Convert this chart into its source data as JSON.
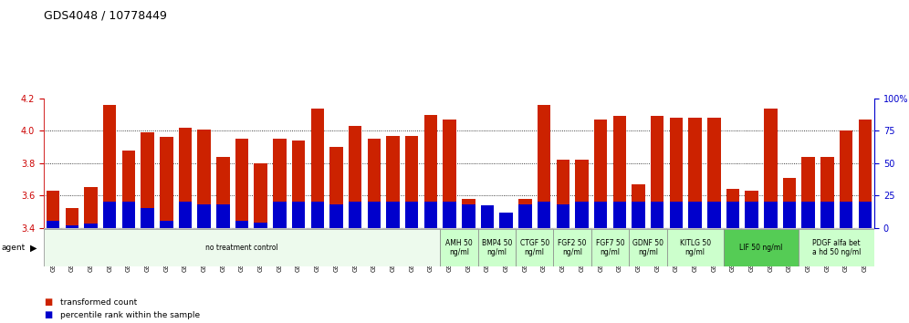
{
  "title": "GDS4048 / 10778449",
  "samples": [
    "GSM509254",
    "GSM509255",
    "GSM509256",
    "GSM510028",
    "GSM510029",
    "GSM510030",
    "GSM510031",
    "GSM510032",
    "GSM510033",
    "GSM510034",
    "GSM510035",
    "GSM510036",
    "GSM510037",
    "GSM510038",
    "GSM510039",
    "GSM510040",
    "GSM510041",
    "GSM510042",
    "GSM510043",
    "GSM510044",
    "GSM510045",
    "GSM510046",
    "GSM510047",
    "GSM509257",
    "GSM509258",
    "GSM509259",
    "GSM510063",
    "GSM510064",
    "GSM510065",
    "GSM510051",
    "GSM510052",
    "GSM510053",
    "GSM510048",
    "GSM510049",
    "GSM510050",
    "GSM510054",
    "GSM510055",
    "GSM510056",
    "GSM510057",
    "GSM510058",
    "GSM510059",
    "GSM510060",
    "GSM510061",
    "GSM510062"
  ],
  "transformed_count": [
    3.63,
    3.52,
    3.65,
    4.16,
    3.88,
    3.99,
    3.96,
    4.02,
    4.01,
    3.84,
    3.95,
    3.8,
    3.95,
    3.94,
    4.14,
    3.9,
    4.03,
    3.95,
    3.97,
    3.97,
    4.1,
    4.07,
    3.58,
    3.47,
    3.36,
    3.58,
    4.16,
    3.82,
    3.82,
    4.07,
    4.09,
    3.67,
    4.09,
    4.08,
    4.08,
    4.08,
    3.64,
    3.63,
    4.14,
    3.71,
    3.84,
    3.84,
    4.0,
    4.07
  ],
  "percentile": [
    5,
    2,
    3,
    20,
    20,
    15,
    5,
    20,
    18,
    18,
    5,
    4,
    20,
    20,
    20,
    18,
    20,
    20,
    20,
    20,
    20,
    20,
    18,
    17,
    12,
    18,
    20,
    18,
    20,
    20,
    20,
    20,
    20,
    20,
    20,
    20,
    20,
    20,
    20,
    20,
    20,
    20,
    20,
    20
  ],
  "ylim_left": [
    3.4,
    4.2
  ],
  "ylim_right": [
    0,
    100
  ],
  "bar_color_red": "#cc2200",
  "bar_color_blue": "#0000cc",
  "group_defs": [
    [
      0,
      20,
      "no treatment control",
      "#edfaed"
    ],
    [
      21,
      22,
      "AMH 50\nng/ml",
      "#ccffcc"
    ],
    [
      23,
      24,
      "BMP4 50\nng/ml",
      "#ccffcc"
    ],
    [
      25,
      26,
      "CTGF 50\nng/ml",
      "#ccffcc"
    ],
    [
      27,
      28,
      "FGF2 50\nng/ml",
      "#ccffcc"
    ],
    [
      29,
      30,
      "FGF7 50\nng/ml",
      "#ccffcc"
    ],
    [
      31,
      32,
      "GDNF 50\nng/ml",
      "#ccffcc"
    ],
    [
      33,
      35,
      "KITLG 50\nng/ml",
      "#ccffcc"
    ],
    [
      36,
      39,
      "LIF 50 ng/ml",
      "#55cc55"
    ],
    [
      40,
      43,
      "PDGF alfa bet\na hd 50 ng/ml",
      "#ccffcc"
    ]
  ],
  "yticks_left": [
    3.4,
    3.6,
    3.8,
    4.0,
    4.2
  ],
  "yticks_right": [
    0,
    25,
    50,
    75,
    100
  ],
  "left_axis_color": "#cc0000",
  "right_axis_color": "#0000cc",
  "bar_width": 0.7
}
